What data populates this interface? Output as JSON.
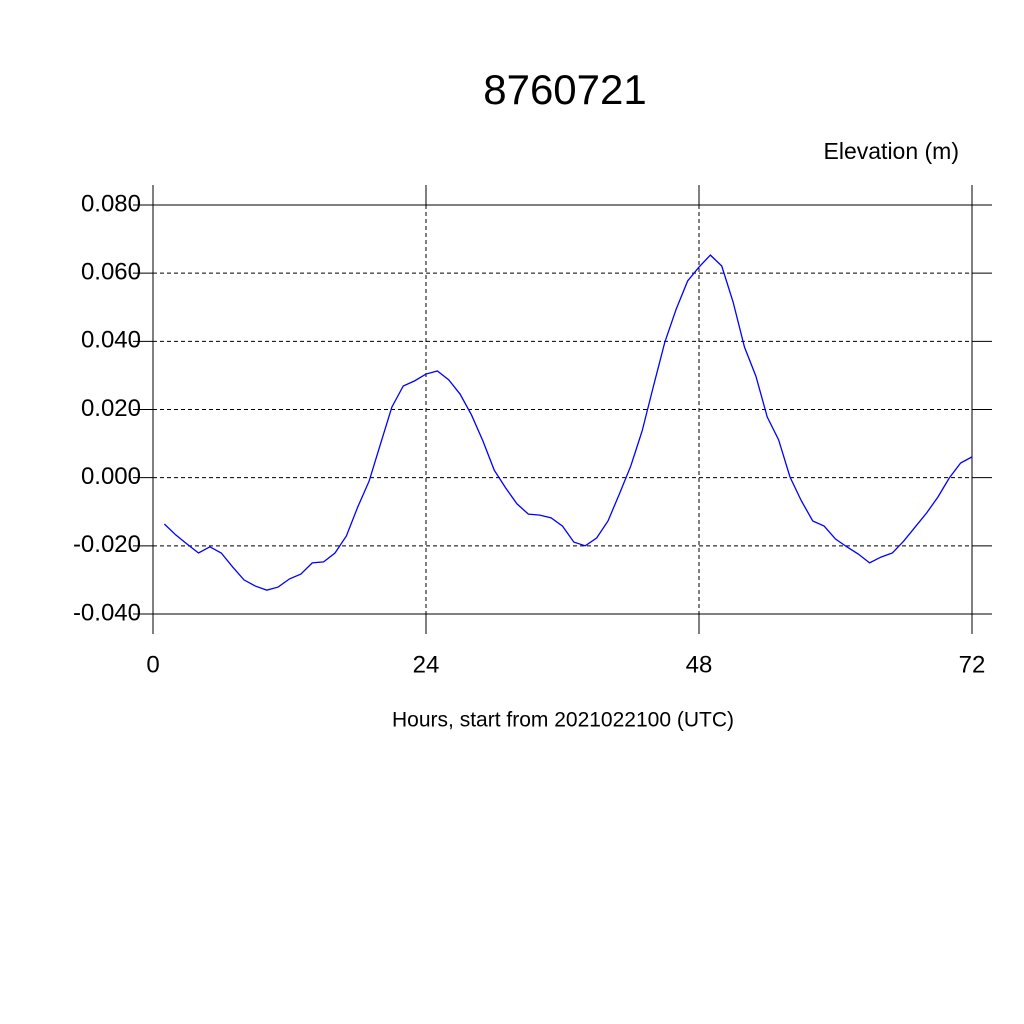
{
  "chart_data": {
    "type": "line",
    "title": "8760721",
    "y_label": "Elevation (m)",
    "x_label": "Hours, start from 2021022100 (UTC)",
    "x": [
      1,
      2,
      3,
      4,
      5,
      6,
      7,
      8,
      9,
      10,
      11,
      12,
      13,
      14,
      15,
      16,
      17,
      18,
      19,
      20,
      21,
      22,
      23,
      24,
      25,
      26,
      27,
      28,
      29,
      30,
      31,
      32,
      33,
      34,
      35,
      36,
      37,
      38,
      39,
      40,
      41,
      42,
      43,
      44,
      45,
      46,
      47,
      48,
      49,
      50,
      51,
      52,
      53,
      54,
      55,
      56,
      57,
      58,
      59,
      60,
      61,
      62,
      63,
      64,
      65,
      66,
      67,
      68,
      69,
      70,
      71,
      72
    ],
    "series": [
      {
        "color": "#0000ff",
        "values": [
          -0.0136,
          -0.0168,
          -0.0195,
          -0.0221,
          -0.0203,
          -0.0221,
          -0.0262,
          -0.03,
          -0.0318,
          -0.033,
          -0.0321,
          -0.0297,
          -0.0283,
          -0.025,
          -0.0247,
          -0.0221,
          -0.0171,
          -0.0086,
          -0.001,
          0.0099,
          0.0207,
          0.0269,
          0.0284,
          0.0304,
          0.0313,
          0.0287,
          0.0245,
          0.0184,
          0.0108,
          0.0022,
          -0.003,
          -0.0077,
          -0.0107,
          -0.011,
          -0.0118,
          -0.0142,
          -0.0189,
          -0.02,
          -0.0177,
          -0.0127,
          -0.0048,
          0.0034,
          0.0137,
          0.0269,
          0.0398,
          0.0495,
          0.0577,
          0.0618,
          0.0653,
          0.0621,
          0.0515,
          0.0383,
          0.0298,
          0.0178,
          0.0111,
          0.0002,
          -0.0068,
          -0.0127,
          -0.0142,
          -0.018,
          -0.0203,
          -0.0224,
          -0.025,
          -0.0233,
          -0.0221,
          -0.0186,
          -0.0145,
          -0.0104,
          -0.0057,
          -0.0001,
          0.0043,
          0.0061
        ]
      }
    ],
    "xlim": [
      0,
      72
    ],
    "xticks": [
      0,
      24,
      48,
      72
    ],
    "ylim": [
      -0.04,
      0.08
    ],
    "yticks": [
      {
        "value": -0.04,
        "label": "-0.040"
      },
      {
        "value": -0.02,
        "label": "-0.020"
      },
      {
        "value": 0,
        "label": "0.000"
      },
      {
        "value": 0.02,
        "label": "0.020"
      },
      {
        "value": 0.04,
        "label": "0.040"
      },
      {
        "value": 0.06,
        "label": "0.060"
      },
      {
        "value": 0.08,
        "label": "0.080"
      }
    ],
    "grid": true
  }
}
